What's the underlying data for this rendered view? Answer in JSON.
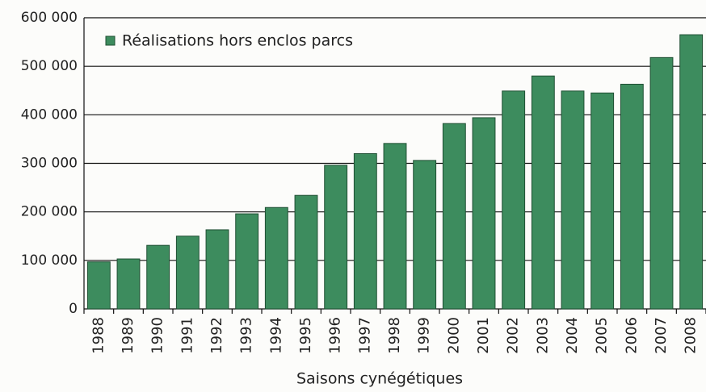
{
  "chart_data": {
    "type": "bar",
    "xlabel": "Saisons cynégétiques",
    "categories": [
      "1988",
      "1989",
      "1990",
      "1991",
      "1992",
      "1993",
      "1994",
      "1995",
      "1996",
      "1997",
      "1998",
      "1999",
      "2000",
      "2001",
      "2002",
      "2003",
      "2004",
      "2005",
      "2006",
      "2007",
      "2008"
    ],
    "series": [
      {
        "name": "Réalisations hors enclos parcs",
        "color": "#3d8c5e",
        "values": [
          97000,
          103000,
          131000,
          150000,
          163000,
          196000,
          209000,
          234000,
          296000,
          320000,
          341000,
          306000,
          382000,
          394000,
          449000,
          480000,
          449000,
          445000,
          463000,
          518000,
          565000
        ]
      }
    ],
    "ylim": [
      0,
      600000
    ],
    "yticks": [
      0,
      {
        "value": 100000,
        "label": "100 000"
      },
      {
        "value": 200000,
        "label": "200 000"
      },
      {
        "value": 300000,
        "label": "300 000"
      },
      {
        "value": 400000,
        "label": "400 000"
      },
      {
        "value": 500000,
        "label": "500 000"
      },
      {
        "value": 600000,
        "label": "600 000"
      }
    ],
    "grid": true,
    "legend": "top-left"
  }
}
